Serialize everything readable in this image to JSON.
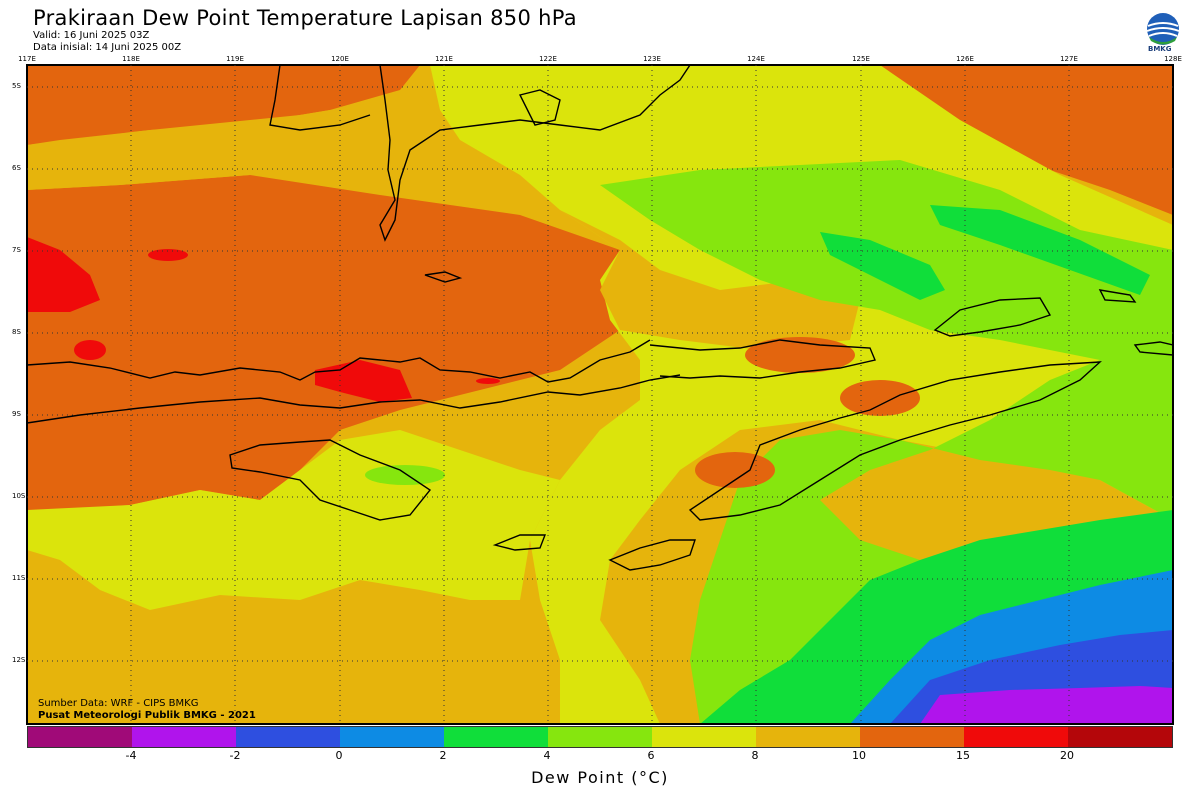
{
  "header": {
    "title": "Prakiraan Dew Point Temperature Lapisan 850 hPa",
    "valid": "Valid: 16 Juni 2025 03Z",
    "init": "Data inisial: 14 Juni 2025 00Z"
  },
  "logo": {
    "text": "BMKG",
    "icon": "bmkg-logo-icon"
  },
  "map": {
    "lon_labels": [
      "117E",
      "118E",
      "119E",
      "120E",
      "121E",
      "122E",
      "123E",
      "124E",
      "125E",
      "126E",
      "127E",
      "128E"
    ],
    "lat_labels": [
      "5S",
      "6S",
      "7S",
      "8S",
      "9S",
      "10S",
      "11S",
      "12S"
    ],
    "credits": [
      "Sumber Data: WRF - CIPS BMKG",
      "Pusat Meteorologi Publik BMKG - 2021"
    ],
    "colors": {
      "c6_8": "#dbe40c",
      "c8_10": "#e6b40c",
      "c10_15": "#e3650e",
      "c15_20": "#f00a0a",
      "c4_6": "#86e60e",
      "c2_4": "#10de3a",
      "c0_2": "#0d8be4",
      "cm2_0": "#2e4fe0",
      "cm4_m2": "#b014ec"
    }
  },
  "colorbar": {
    "title": "Dew Point (°C)",
    "colors": [
      "#a00a78",
      "#b014ec",
      "#2e4fe0",
      "#0d8be4",
      "#10de3a",
      "#86e60e",
      "#dbe40c",
      "#e6b40c",
      "#e3650e",
      "#f00a0a",
      "#b4060a"
    ],
    "ticks": [
      "-4",
      "-2",
      "0",
      "2",
      "4",
      "6",
      "8",
      "10",
      "15",
      "20"
    ]
  }
}
